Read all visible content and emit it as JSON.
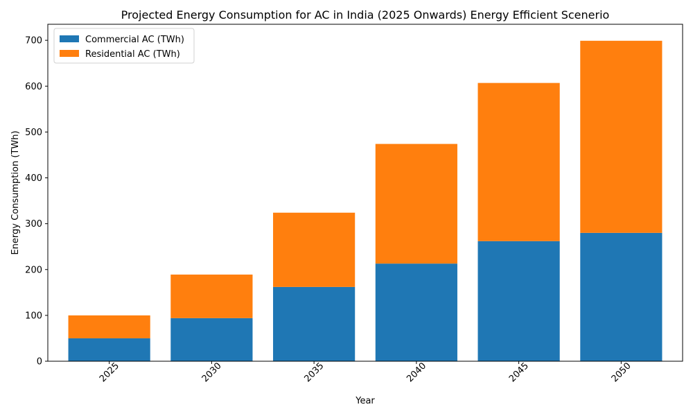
{
  "chart_data": {
    "type": "bar",
    "stacked": true,
    "title": "Projected Energy Consumption for AC in India (2025 Onwards) Energy Efficient Scenerio",
    "xlabel": "Year",
    "ylabel": "Energy Consumption (TWh)",
    "categories": [
      "2025",
      "2030",
      "2035",
      "2040",
      "2045",
      "2050"
    ],
    "series": [
      {
        "name": "Commercial AC (TWh)",
        "color": "#1f77b4",
        "values": [
          50,
          94,
          162,
          213,
          262,
          280
        ]
      },
      {
        "name": "Residential AC (TWh)",
        "color": "#ff7f0e",
        "values": [
          50,
          95,
          162,
          261,
          345,
          419
        ]
      }
    ],
    "ylim": [
      0,
      735
    ],
    "yticks": [
      0,
      100,
      200,
      300,
      400,
      500,
      600,
      700
    ],
    "grid": false,
    "legend_position": "top-left",
    "xtick_rotation": 45
  }
}
